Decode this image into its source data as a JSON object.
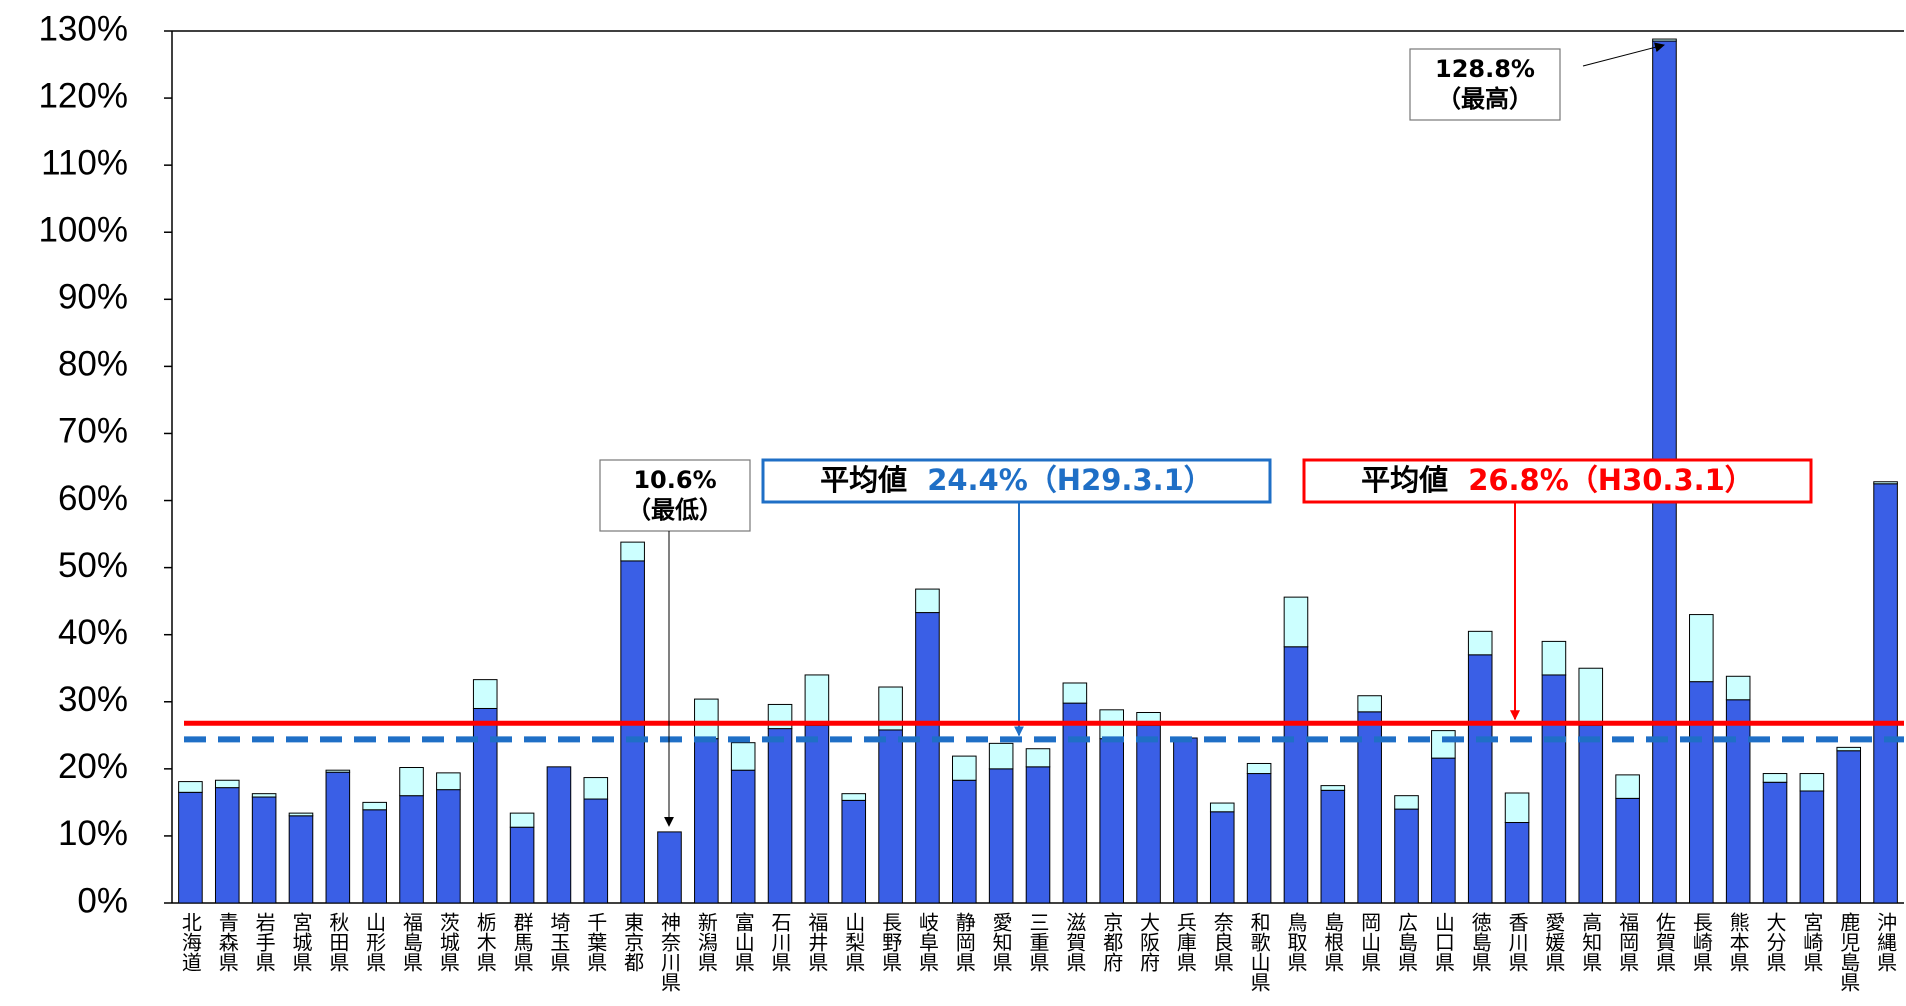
{
  "chart_data": {
    "type": "stacked_bar",
    "categories": [
      "北海道",
      "青森県",
      "岩手県",
      "宮城県",
      "秋田県",
      "山形県",
      "福島県",
      "茨城県",
      "栃木県",
      "群馬県",
      "埼玉県",
      "千葉県",
      "東京都",
      "神奈川県",
      "新潟県",
      "富山県",
      "石川県",
      "福井県",
      "山梨県",
      "長野県",
      "岐阜県",
      "静岡県",
      "愛知県",
      "三重県",
      "滋賀県",
      "京都府",
      "大阪府",
      "兵庫県",
      "奈良県",
      "和歌山県",
      "鳥取県",
      "島根県",
      "岡山県",
      "広島県",
      "山口県",
      "徳島県",
      "香川県",
      "愛媛県",
      "高知県",
      "福岡県",
      "佐賀県",
      "長崎県",
      "熊本県",
      "大分県",
      "宮崎県",
      "鹿児島県",
      "沖縄県"
    ],
    "series": [
      {
        "color": "#3a5fe6",
        "values": [
          16.5,
          17.2,
          15.8,
          13.0,
          19.5,
          13.9,
          16.0,
          16.9,
          29.0,
          11.3,
          20.3,
          15.5,
          51.0,
          10.6,
          24.5,
          19.8,
          26.0,
          26.5,
          15.3,
          25.8,
          43.3,
          18.3,
          20.0,
          20.3,
          29.8,
          24.5,
          26.5,
          24.6,
          13.6,
          19.3,
          38.2,
          16.8,
          28.5,
          14.0,
          21.6,
          37.0,
          12.0,
          34.0,
          26.5,
          15.6,
          128.5,
          33.0,
          30.3,
          18.0,
          16.7,
          22.7,
          62.5
        ]
      },
      {
        "color": "#ccffff",
        "values": [
          1.6,
          1.1,
          0.5,
          0.4,
          0.3,
          1.1,
          4.2,
          2.5,
          4.3,
          2.1,
          0,
          3.2,
          2.8,
          0,
          5.9,
          4.1,
          3.6,
          7.5,
          1.0,
          6.4,
          3.5,
          3.6,
          3.8,
          2.7,
          3.0,
          4.3,
          1.9,
          0,
          1.3,
          1.5,
          7.4,
          0.7,
          2.4,
          2.0,
          4.1,
          3.5,
          4.4,
          5.0,
          8.5,
          3.5,
          0.3,
          10.0,
          3.5,
          1.3,
          2.6,
          0.5,
          0.3
        ]
      }
    ],
    "ylim": [
      0,
      130
    ],
    "yticks": [
      {
        "value": 0,
        "label": "0%"
      },
      {
        "value": 10,
        "label": "10%"
      },
      {
        "value": 20,
        "label": "20%"
      },
      {
        "value": 30,
        "label": "30%"
      },
      {
        "value": 40,
        "label": "40%"
      },
      {
        "value": 50,
        "label": "50%"
      },
      {
        "value": 60,
        "label": "60%"
      },
      {
        "value": 70,
        "label": "70%"
      },
      {
        "value": 80,
        "label": "80%"
      },
      {
        "value": 90,
        "label": "90%"
      },
      {
        "value": 100,
        "label": "100%"
      },
      {
        "value": 110,
        "label": "110%"
      },
      {
        "value": 120,
        "label": "120%"
      },
      {
        "value": 130,
        "label": "130%"
      }
    ],
    "reference_lines": [
      {
        "label": "平均値",
        "value_label": "24.4%（H29.3.1）",
        "value": 24.4,
        "color": "#1f6fc6",
        "style": "dashed"
      },
      {
        "label": "平均値",
        "value_label": "26.8%（H30.3.1）",
        "value": 26.8,
        "color": "#ff0000",
        "style": "solid"
      }
    ],
    "annotations": [
      {
        "text": "128.8%",
        "note": "（最高）"
      },
      {
        "text": "10.6%",
        "note": "（最低）"
      }
    ]
  }
}
